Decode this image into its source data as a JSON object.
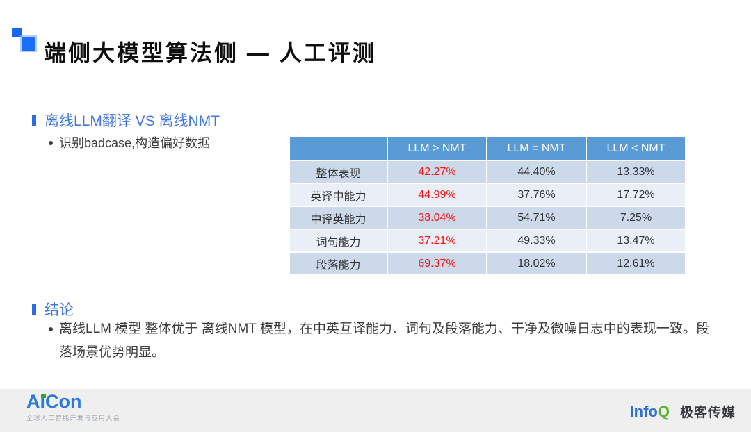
{
  "slide_title": "端侧大模型算法侧 — 人工评测",
  "sections": {
    "translation": {
      "heading": "离线LLM翻译 VS 离线NMT",
      "bullet": "识别badcase,构造偏好数据"
    },
    "conclusion": {
      "heading": "结论",
      "bullet": "离线LLM 模型 整体优于 离线NMT 模型，在中英互译能力、词句及段落能力、干净及微噪日志中的表现一致。段落场景优势明显。"
    }
  },
  "table": {
    "col_headers": [
      "LLM > NMT",
      "LLM = NMT",
      "LLM < NMT"
    ],
    "rows": [
      {
        "label": "整体表现",
        "values": [
          "42.27%",
          "44.40%",
          "13.33%"
        ]
      },
      {
        "label": "英译中能力",
        "values": [
          "44.99%",
          "37.76%",
          "17.72%"
        ]
      },
      {
        "label": "中译英能力",
        "values": [
          "38.04%",
          "54.71%",
          "7.25%"
        ]
      },
      {
        "label": "词句能力",
        "values": [
          "37.21%",
          "49.33%",
          "13.47%"
        ]
      },
      {
        "label": "段落能力",
        "values": [
          "69.37%",
          "18.02%",
          "12.61%"
        ]
      }
    ],
    "highlight_column": "LLM > NMT",
    "highlight_color": "#fe1010",
    "header_bg": "#5b9bd5",
    "band_dark": "#ccd9ea",
    "band_light": "#e9eef7"
  },
  "footer": {
    "aicon": {
      "text": "AiCon",
      "tagline": "全球人工智能开发与应用大会"
    },
    "infoq": {
      "part_info": "Info",
      "part_q": "Q",
      "media": "极客传媒"
    }
  },
  "colors": {
    "accent_blue": "#3f76e4",
    "section_bar_blue": "#2e6ae0",
    "brand_square_blue": "#1a6ffb",
    "title_text": "#0f0f0f",
    "body_text": "#3c3c3c",
    "footer_bg": "#efefef",
    "aicon_blue": "#2b79dd",
    "aicon_green": "#35a42c",
    "infoq_blue": "#2e6fd3",
    "infoq_green": "#5cb531"
  }
}
